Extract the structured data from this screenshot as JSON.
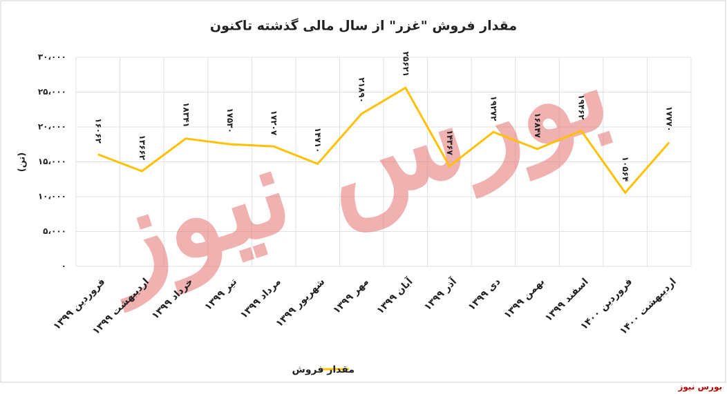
{
  "chart_data": {
    "type": "line",
    "title": "مقدار فروش \"غزر\" از سال مالی گذشته تاکنون",
    "y_label": "(تن)",
    "categories": [
      "فروردین ۱۳۹۹",
      "اردیبهشت ۱۳۹۹",
      "خرداد ۱۳۹۹",
      "تیر ۱۳۹۹",
      "مرداد ۱۳۹۹",
      "شهریور ۱۳۹۹",
      "مهر ۱۳۹۹",
      "آبان ۱۳۹۹",
      "آذر ۱۳۹۹",
      "دی ۱۳۹۹",
      "بهمن ۱۳۹۹",
      "اسفند ۱۳۹۹",
      "فروردین ۱۴۰۰",
      "اردیبهشت ۱۴۰۰"
    ],
    "series": [
      {
        "name": "مقدار فروش",
        "color": "#ffc000",
        "values": [
          16062,
          13662,
          18341,
          17530,
          17207,
          14710,
          21890,
          25621,
          14367,
          19272,
          16847,
          19462,
          10564,
          17770
        ],
        "value_labels": [
          "۱۶۰۶۲",
          "۱۳۶۶۲",
          "۱۸۳۴۱",
          "۱۷۵۳۰",
          "۱۷۲۰۷",
          "۱۴۷۱۰",
          "۲۱۸۹۰",
          "۲۵۶۲۱",
          "۱۴۳۶۷",
          "۱۹۲۷۲",
          "۱۶۸۴۷",
          "۱۹۴۶۲",
          "۱۰۵۶۴",
          "۱۷۷۷۰"
        ]
      }
    ],
    "ylim": [
      0,
      30000
    ],
    "yticks": [
      {
        "value": 0,
        "label": "۰"
      },
      {
        "value": 5000,
        "label": "۵،۰۰۰"
      },
      {
        "value": 10000,
        "label": "۱۰،۰۰۰"
      },
      {
        "value": 15000,
        "label": "۱۵،۰۰۰"
      },
      {
        "value": 20000,
        "label": "۲۰،۰۰۰"
      },
      {
        "value": 25000,
        "label": "۲۵،۰۰۰"
      },
      {
        "value": 30000,
        "label": "۳۰،۰۰۰"
      }
    ],
    "grid": true,
    "legend": "bottom",
    "watermark": "بورس نیوز",
    "source": "بورس نیوز"
  }
}
